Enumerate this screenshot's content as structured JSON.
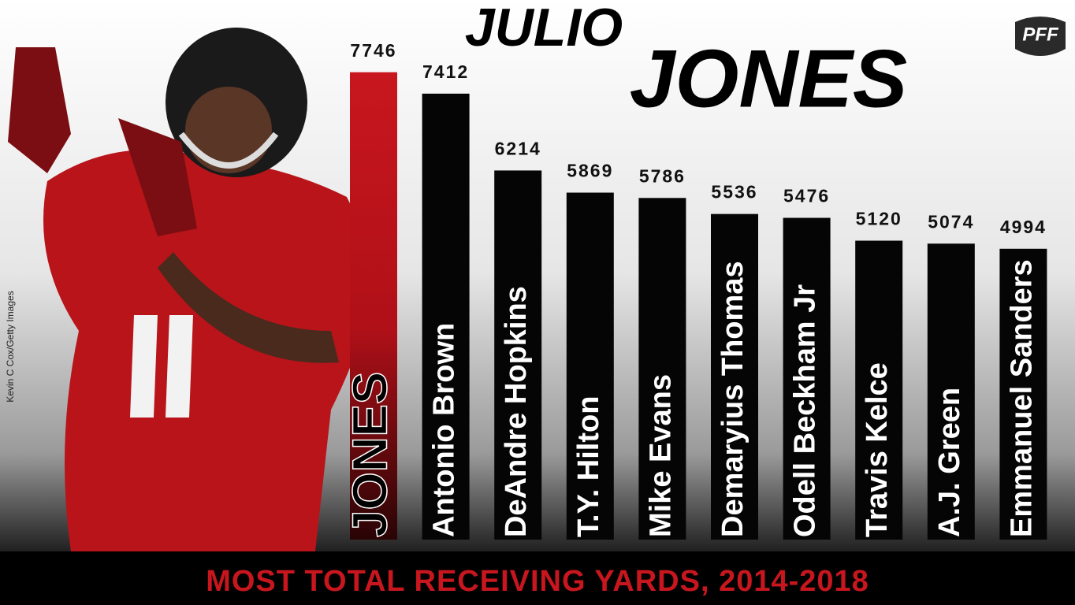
{
  "chart_data": {
    "type": "bar",
    "title": [
      "JULIO",
      "JONES"
    ],
    "subtitle": "MOST TOTAL RECEIVING YARDS, 2014-2018",
    "credit": "Kevin C Cox/Getty Images",
    "logo": "PFF",
    "categories": [
      "JONES",
      "Antonio Brown",
      "DeAndre Hopkins",
      "T.Y. Hilton",
      "Mike Evans",
      "Demaryius Thomas",
      "Odell Beckham Jr",
      "Travis Kelce",
      "A.J. Green",
      "Emmanuel Sanders"
    ],
    "values": [
      7746,
      7412,
      6214,
      5869,
      5786,
      5536,
      5476,
      5120,
      5074,
      4994
    ],
    "color": "#050505",
    "highlight": {
      "index": 0,
      "color": "#c8161e"
    },
    "ylim": [
      460,
      8000
    ]
  }
}
